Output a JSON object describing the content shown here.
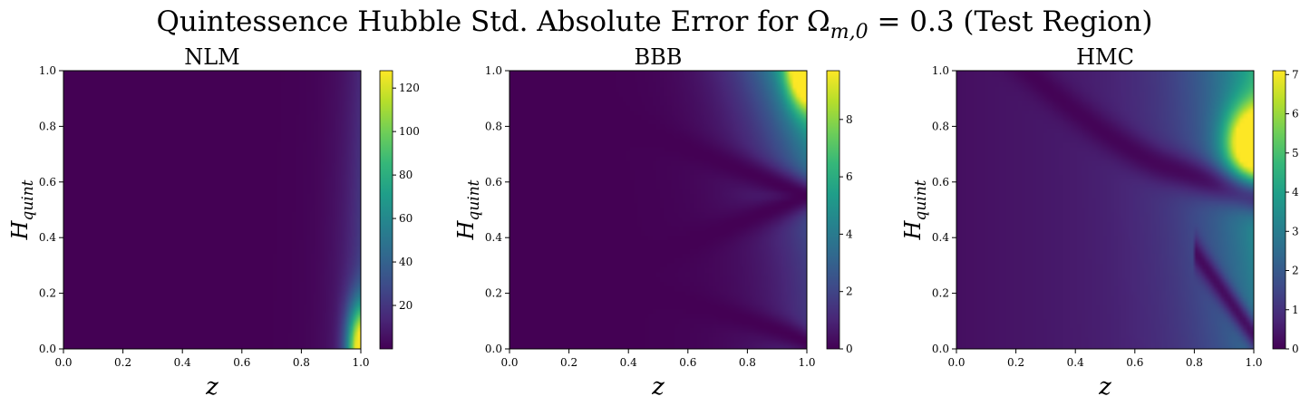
{
  "figure": {
    "title": "Quintessence Hubble Std. Absolute Error for Ω",
    "title_sub": "m,0",
    "title_tail": " = 0.3 (Test Region)"
  },
  "chart_data": [
    {
      "type": "heatmap",
      "title": "NLM",
      "xlabel": "z",
      "ylabel_main": "H",
      "ylabel_sub": "quint",
      "xlim": [
        0,
        1
      ],
      "ylim": [
        0,
        1
      ],
      "xticks": [
        "0.0",
        "0.2",
        "0.4",
        "0.6",
        "0.8",
        "1.0"
      ],
      "yticks": [
        "0.0",
        "0.2",
        "0.4",
        "0.6",
        "0.8",
        "1.0"
      ],
      "colormap": "viridis",
      "color_range": [
        0,
        128
      ],
      "colorbar_ticks": [
        "20",
        "40",
        "60",
        "80",
        "100",
        "120"
      ],
      "pattern": "error grows sharply toward z = 1, peaking near H_quint ≈ 0.0–0.1 at about 128",
      "peak_value": 128
    },
    {
      "type": "heatmap",
      "title": "BBB",
      "xlabel": "z",
      "ylabel_main": "H",
      "ylabel_sub": "quint",
      "xlim": [
        0,
        1
      ],
      "ylim": [
        0,
        1
      ],
      "xticks": [
        "0.0",
        "0.2",
        "0.4",
        "0.6",
        "0.8",
        "1.0"
      ],
      "yticks": [
        "0.0",
        "0.2",
        "0.4",
        "0.6",
        "0.8",
        "1.0"
      ],
      "colormap": "viridis",
      "color_range": [
        0,
        9.7
      ],
      "colorbar_ticks": [
        "0",
        "2",
        "4",
        "6",
        "8"
      ],
      "pattern": "error rises toward z = 1 with a maximum near H_quint ≈ 1.0 and low valleys curving near H_quint ≈ 0.55 and 0.0",
      "peak_value": 9.7
    },
    {
      "type": "heatmap",
      "title": "HMC",
      "xlabel": "z",
      "ylabel_main": "H",
      "ylabel_sub": "quint",
      "xlim": [
        0,
        1
      ],
      "ylim": [
        0,
        1
      ],
      "xticks": [
        "0.0",
        "0.2",
        "0.4",
        "0.6",
        "0.8",
        "1.0"
      ],
      "yticks": [
        "0.0",
        "0.2",
        "0.4",
        "0.6",
        "0.8",
        "1.0"
      ],
      "colormap": "viridis",
      "color_range": [
        0,
        7.1
      ],
      "colorbar_ticks": [
        "0",
        "1",
        "2",
        "3",
        "4",
        "5",
        "6",
        "7"
      ],
      "pattern": "error peaks near z = 1, H_quint ≈ 0.75 with a curved low valley from z ≈ 0.5 and another near H_quint ≈ 0.2",
      "peak_value": 7.1
    }
  ]
}
